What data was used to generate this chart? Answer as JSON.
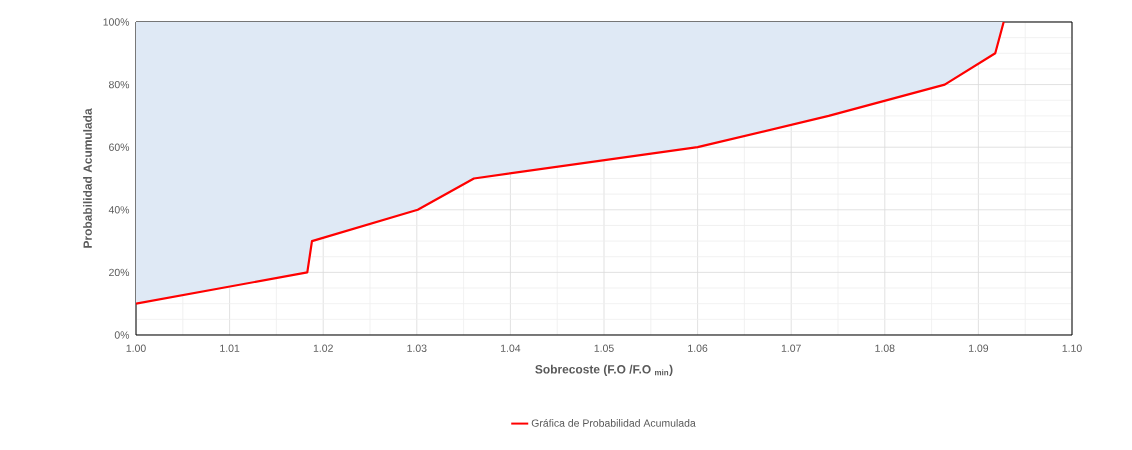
{
  "chart_data": {
    "type": "line",
    "xlabel": "Sobrecoste (F.O /F.O $_{min}$)",
    "ylabel": "Probabilidad Acumulada",
    "series": [
      {
        "name": "Gráfica de Probabilidad Acumulada",
        "color": "#ff0000",
        "x": [
          1.0,
          1.0183,
          1.0188,
          1.0301,
          1.0361,
          1.06,
          1.074,
          1.0864,
          1.0918,
          1.0927
        ],
        "values": [
          10,
          20,
          30,
          40,
          50,
          60,
          70,
          80,
          90,
          100
        ],
        "lower": [
          10,
          20,
          30,
          40,
          50,
          60,
          70,
          80,
          90,
          100
        ],
        "upper": [
          100,
          100,
          100,
          100,
          100,
          100,
          100,
          100,
          100,
          100
        ]
      }
    ],
    "xlim": [
      1.0,
      1.1
    ],
    "ylim": [
      0,
      100
    ],
    "xticks": [
      {
        "value": 1.0,
        "label": "1.00"
      },
      {
        "value": 1.01,
        "label": "1.01"
      },
      {
        "value": 1.02,
        "label": "1.02"
      },
      {
        "value": 1.03,
        "label": "1.03"
      },
      {
        "value": 1.04,
        "label": "1.04"
      },
      {
        "value": 1.05,
        "label": "1.05"
      },
      {
        "value": 1.06,
        "label": "1.06"
      },
      {
        "value": 1.07,
        "label": "1.07"
      },
      {
        "value": 1.08,
        "label": "1.08"
      },
      {
        "value": 1.09,
        "label": "1.09"
      },
      {
        "value": 1.1,
        "label": "1.10"
      }
    ],
    "yticks": [
      {
        "value": 0,
        "label": "0%"
      },
      {
        "value": 20,
        "label": "20%"
      },
      {
        "value": 40,
        "label": "40%"
      },
      {
        "value": 60,
        "label": "60%"
      },
      {
        "value": 80,
        "label": "80%"
      },
      {
        "value": 100,
        "label": "100%"
      }
    ],
    "grid": true,
    "legend": "bottom",
    "marker": "none",
    "line_style": "solid"
  }
}
